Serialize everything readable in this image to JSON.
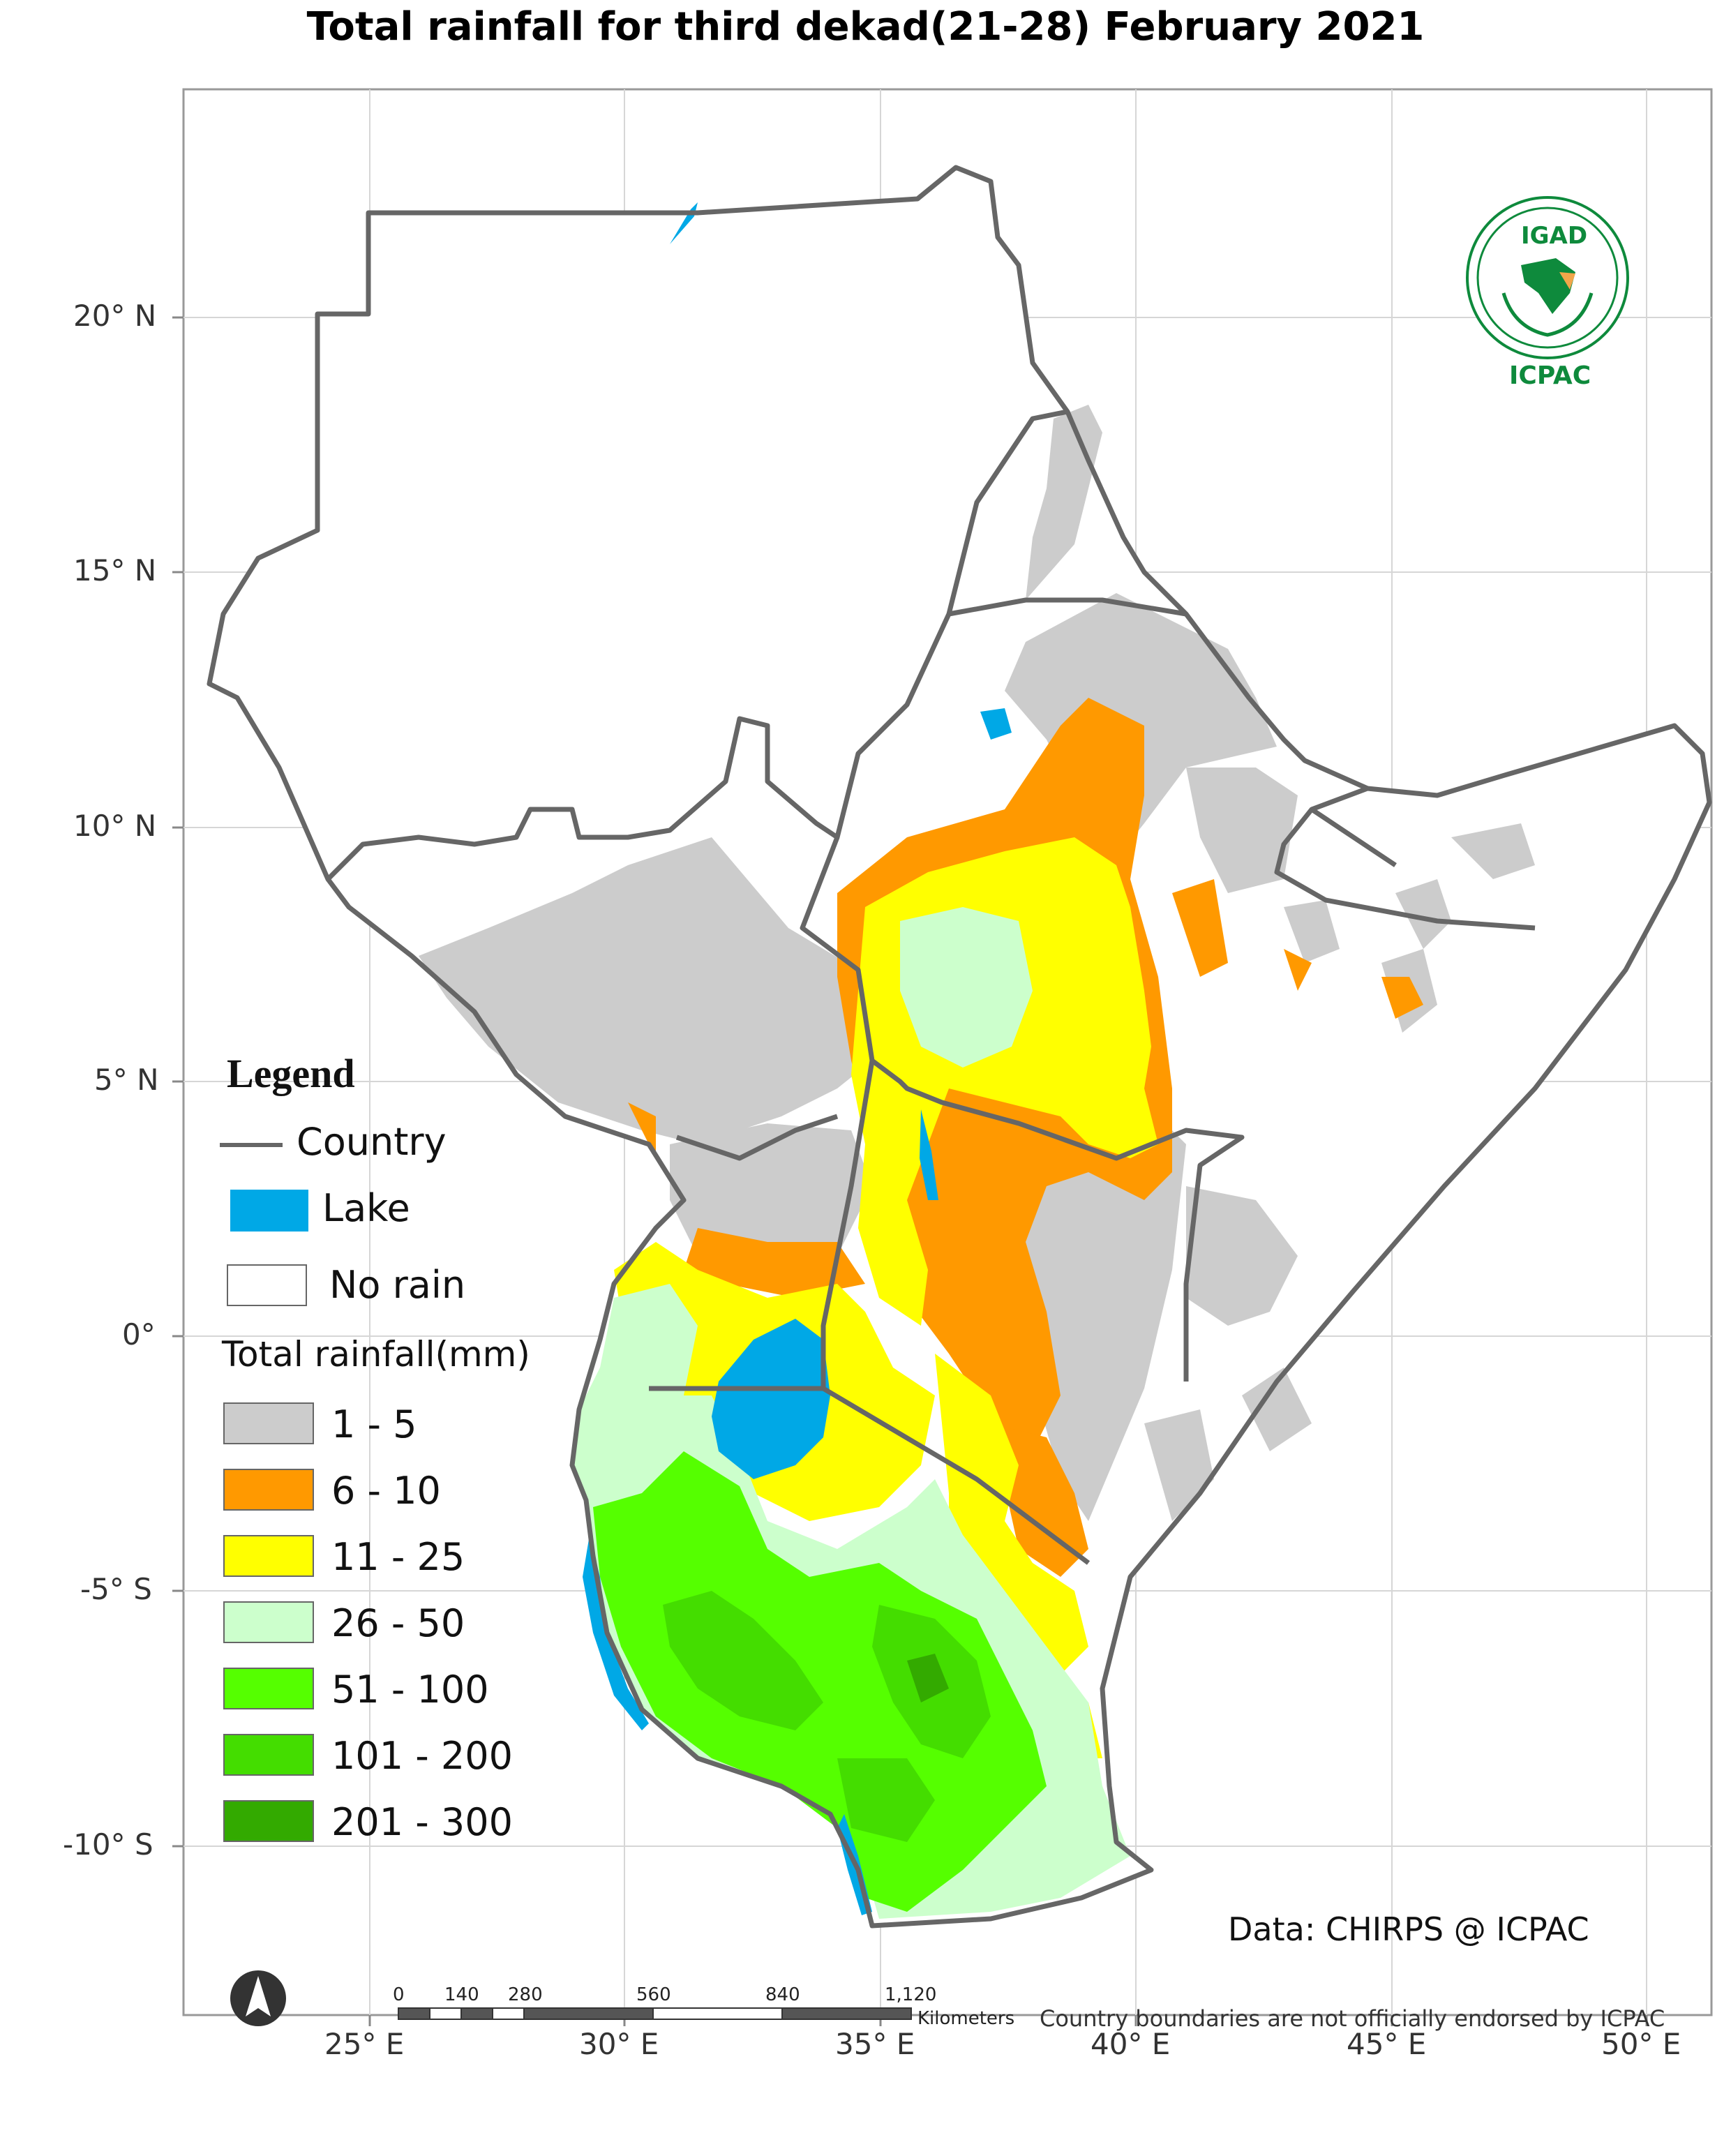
{
  "title": "Total rainfall for  third  dekad(21-28)  February 2021",
  "x_ticks": [
    "25° E",
    "30° E",
    "35° E",
    "40° E",
    "45° E",
    "50° E"
  ],
  "y_ticks": [
    "20° N",
    "15° N",
    "10° N",
    "5° N",
    "0°",
    "-5° S",
    "-10° S"
  ],
  "legend": {
    "title": "Legend",
    "country": "Country",
    "lake": "Lake",
    "no_rain": "No rain",
    "rainfall_title": "Total rainfall(mm)",
    "classes": [
      {
        "label": "1 - 5",
        "color": "#cccccc"
      },
      {
        "label": "6 - 10",
        "color": "#ff9900"
      },
      {
        "label": "11 - 25",
        "color": "#ffff00"
      },
      {
        "label": "26 - 50",
        "color": "#ccffcc"
      },
      {
        "label": "51 - 100",
        "color": "#55ff00"
      },
      {
        "label": "101 - 200",
        "color": "#44dd00"
      },
      {
        "label": "201 - 300",
        "color": "#33aa00"
      }
    ],
    "lake_color": "#00a8e6",
    "border_color": "#666666"
  },
  "logo": {
    "top": "IGAD",
    "bottom": "ICPAC"
  },
  "data_credit": "Data: CHIRPS @ ICPAC",
  "scale_bar": {
    "labels": [
      "0",
      "140",
      "280",
      "560",
      "840",
      "1,120"
    ],
    "unit": "Kilometers"
  },
  "disclaimer": "Country boundaries are not officially endorsed by ICPAC"
}
